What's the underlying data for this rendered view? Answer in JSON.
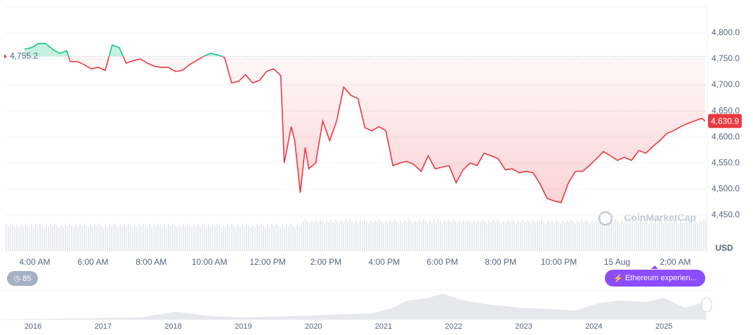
{
  "chart_data": {
    "type": "line",
    "x": [
      3.65,
      3.89,
      4.13,
      4.37,
      4.61,
      4.86,
      5.1,
      5.22,
      5.46,
      5.7,
      5.94,
      6.18,
      6.42,
      6.66,
      6.9,
      7.14,
      7.39,
      7.63,
      7.87,
      8.11,
      8.35,
      8.59,
      8.83,
      9.07,
      9.31,
      9.55,
      9.8,
      10.04,
      10.28,
      10.52,
      10.76,
      11.0,
      11.24,
      11.48,
      11.72,
      11.96,
      12.2,
      12.45,
      12.57,
      12.81,
      12.93,
      13.12,
      13.29,
      13.41,
      13.65,
      13.89,
      14.13,
      14.37,
      14.61,
      14.86,
      15.1,
      15.34,
      15.58,
      15.82,
      16.06,
      16.3,
      16.54,
      16.78,
      17.02,
      17.27,
      17.51,
      17.75,
      17.99,
      18.23,
      18.47,
      18.71,
      18.95,
      19.19,
      19.43,
      19.67,
      19.92,
      20.16,
      20.4,
      20.64,
      20.88,
      21.12,
      21.36,
      21.6,
      21.84,
      22.08,
      22.33,
      22.57,
      22.81,
      23.05,
      23.29,
      23.53,
      23.77,
      24.01,
      24.25,
      24.49,
      24.75,
      24.99,
      25.23,
      25.47,
      25.71,
      25.94,
      26.18,
      26.42,
      26.66,
      26.9,
      27.02
    ],
    "values": [
      4769,
      4772,
      4780,
      4780,
      4769,
      4761,
      4766,
      4745,
      4745,
      4739,
      4731,
      4734,
      4728,
      4777,
      4772,
      4742,
      4747,
      4750,
      4742,
      4736,
      4734,
      4734,
      4726,
      4728,
      4739,
      4747,
      4755,
      4761,
      4758,
      4753,
      4704,
      4707,
      4720,
      4704,
      4709,
      4726,
      4731,
      4718,
      4550,
      4620,
      4593,
      4493,
      4580,
      4539,
      4550,
      4631,
      4593,
      4631,
      4696,
      4680,
      4674,
      4618,
      4612,
      4620,
      4612,
      4545,
      4550,
      4553,
      4547,
      4534,
      4564,
      4539,
      4542,
      4545,
      4512,
      4537,
      4550,
      4545,
      4569,
      4564,
      4558,
      4537,
      4539,
      4531,
      4534,
      4531,
      4509,
      4482,
      4477,
      4474,
      4512,
      4534,
      4534,
      4545,
      4558,
      4572,
      4564,
      4555,
      4561,
      4555,
      4574,
      4569,
      4582,
      4593,
      4607,
      4612,
      4620,
      4626,
      4631,
      4636,
      4631
    ],
    "color_up": "#16c784",
    "color_down": "#ea3943",
    "xlim": [
      3,
      27.1
    ],
    "xticks": [
      {
        "value": 4,
        "label": "4:00 AM"
      },
      {
        "value": 6,
        "label": "6:00 AM"
      },
      {
        "value": 8,
        "label": "8:00 AM"
      },
      {
        "value": 10,
        "label": "10:00 AM"
      },
      {
        "value": 12,
        "label": "12:00 PM"
      },
      {
        "value": 14,
        "label": "2:00 PM"
      },
      {
        "value": 16,
        "label": "4:00 PM"
      },
      {
        "value": 18,
        "label": "6:00 PM"
      },
      {
        "value": 20,
        "label": "8:00 PM"
      },
      {
        "value": 22,
        "label": "10:00 PM"
      },
      {
        "value": 24,
        "label": "15 Aug"
      },
      {
        "value": 26,
        "label": "2:00 AM"
      }
    ],
    "ylim": [
      4380,
      4850
    ],
    "yticks": [
      {
        "value": 4450,
        "label": "4,450.0"
      },
      {
        "value": 4500,
        "label": "4,500.0"
      },
      {
        "value": 4550,
        "label": "4,550.0"
      },
      {
        "value": 4600,
        "label": "4,600.0"
      },
      {
        "value": 4650,
        "label": "4,650.0"
      },
      {
        "value": 4700,
        "label": "4,700.0"
      },
      {
        "value": 4750,
        "label": "4,750.0"
      },
      {
        "value": 4800,
        "label": "4,800.0"
      }
    ],
    "grid": true,
    "baseline": {
      "value": 4755.2,
      "label": "4,755.2"
    },
    "last": {
      "value": 4630.9,
      "label": "4,630.9"
    },
    "y_unit": "USD",
    "watermark": "CoinMarketCap"
  },
  "controls": {
    "alerts": "85",
    "event": "Ethereum experien..."
  },
  "navigator": {
    "years": [
      "2016",
      "2017",
      "2018",
      "2019",
      "2020",
      "2021",
      "2022",
      "2023",
      "2024",
      "2025"
    ]
  }
}
